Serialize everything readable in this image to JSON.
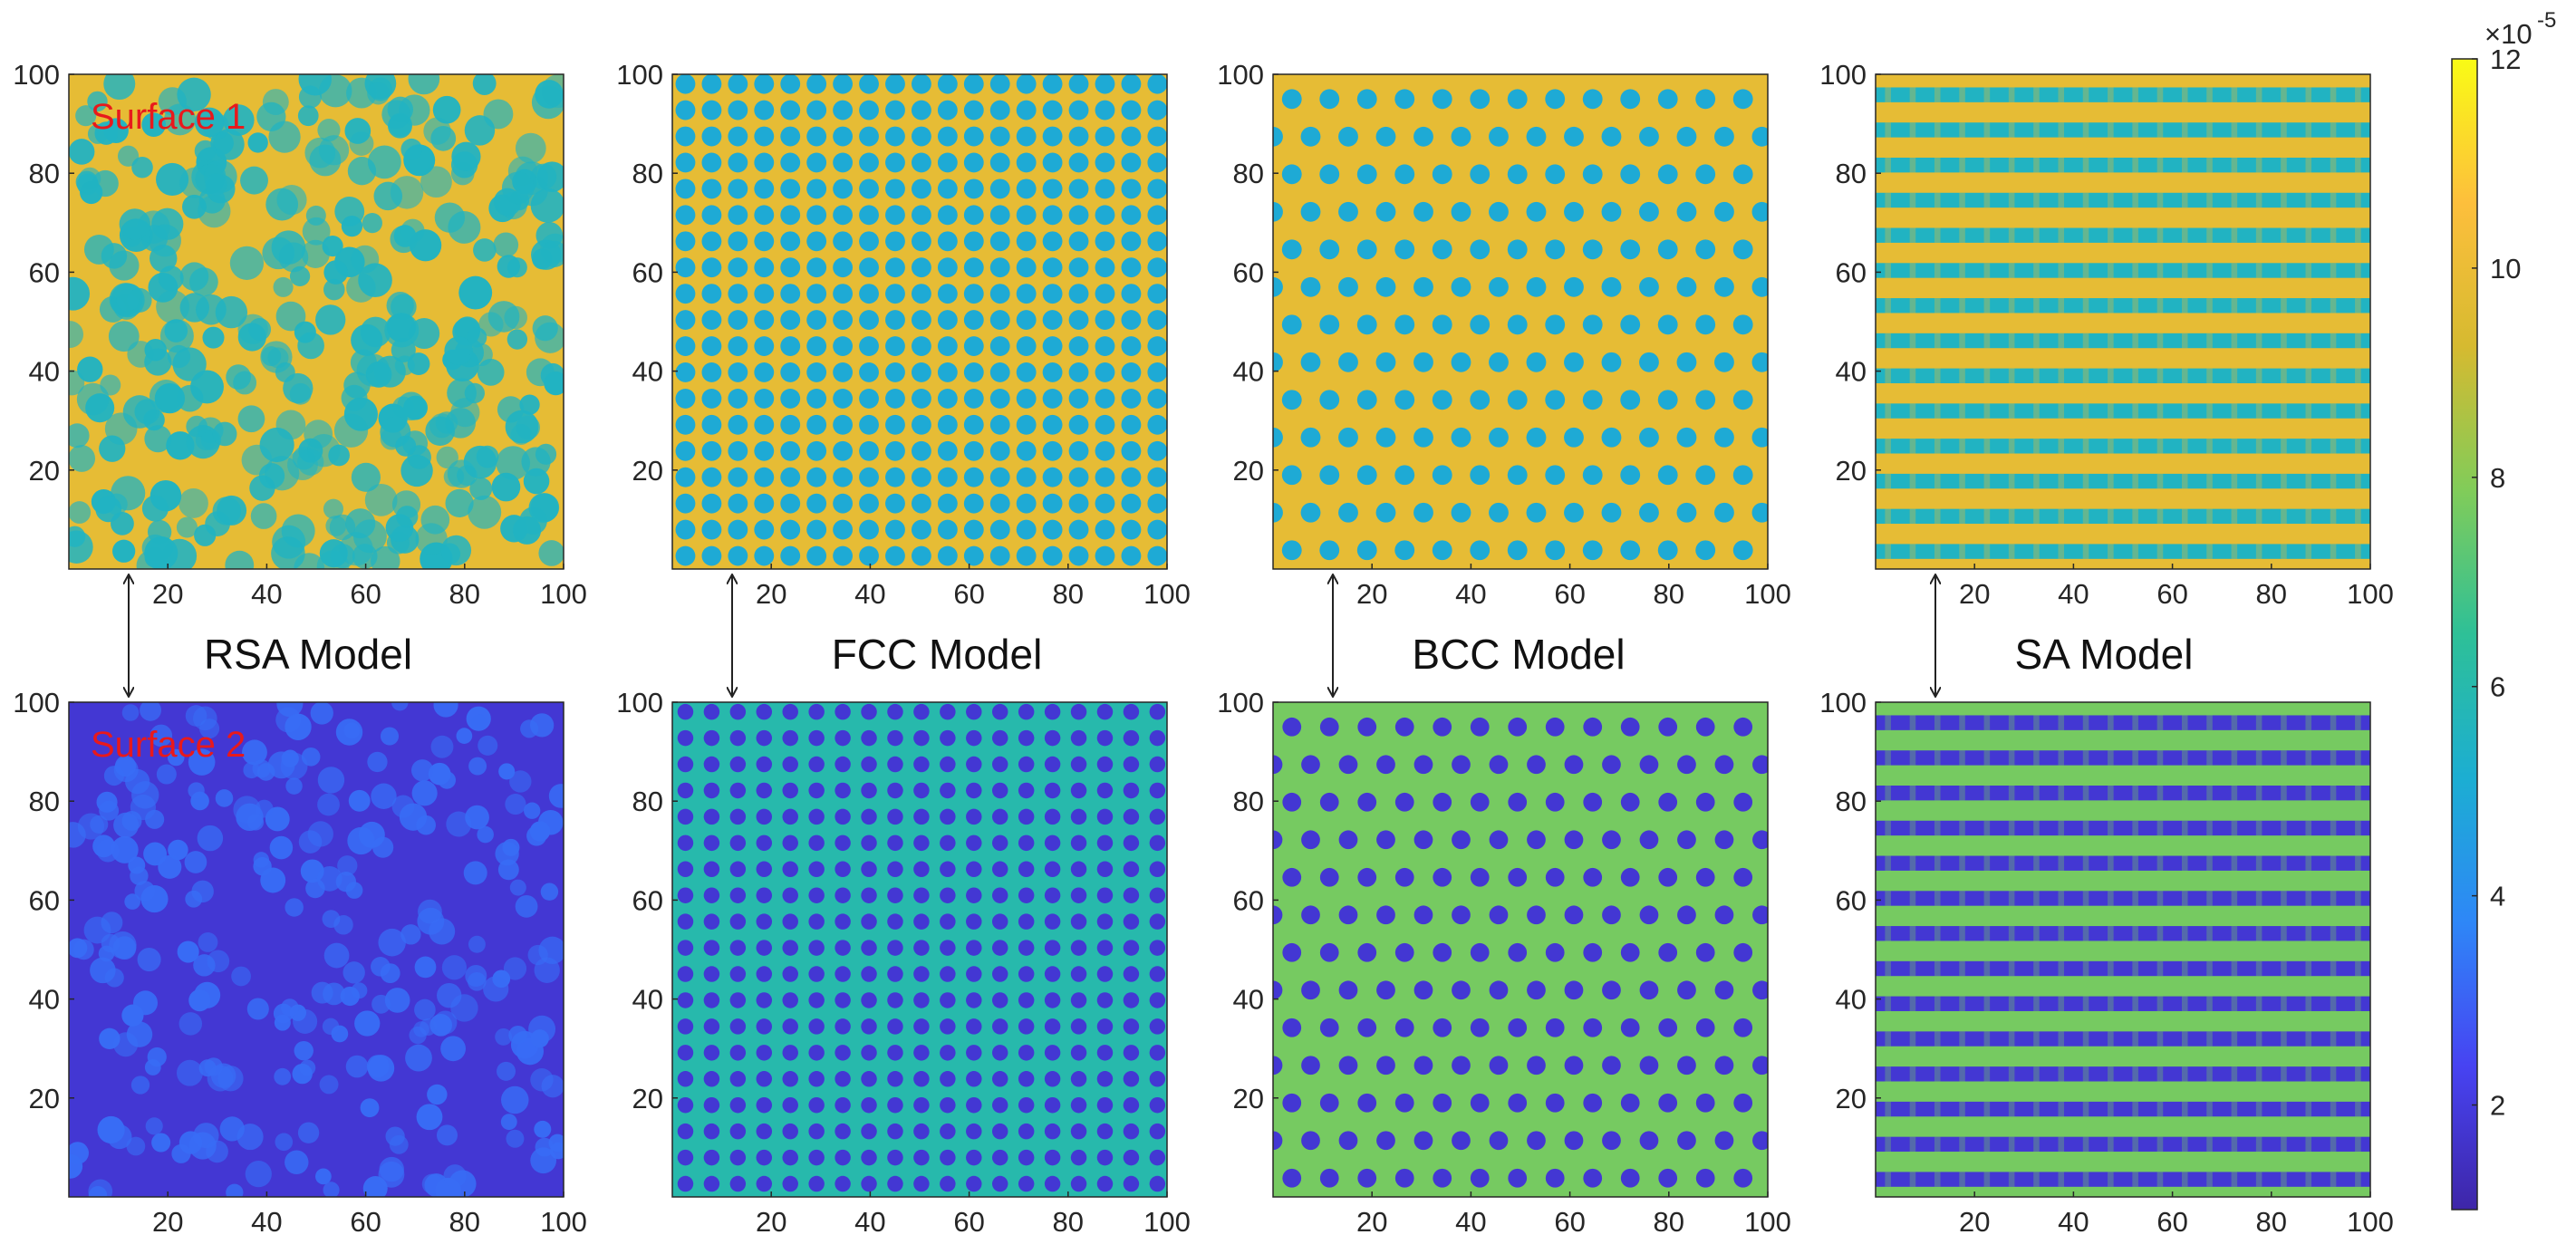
{
  "chart_data": [
    {
      "type": "heatmap",
      "model": "RSA",
      "row": "top",
      "label": "Surface 1",
      "pattern": "random",
      "xticks": [
        "20",
        "40",
        "60",
        "80",
        "100"
      ],
      "yticks": [
        "20",
        "40",
        "60",
        "80",
        "100"
      ],
      "xlim": [
        0,
        100
      ],
      "ylim": [
        0,
        100
      ],
      "background_level": 9.8,
      "spot_level": 5.5,
      "spot_count": 350,
      "spot_diameter": 5
    },
    {
      "type": "heatmap",
      "model": "FCC",
      "row": "top",
      "pattern": "square",
      "xticks": [
        "20",
        "40",
        "60",
        "80",
        "100"
      ],
      "yticks": [
        "20",
        "40",
        "60",
        "80",
        "100"
      ],
      "xlim": [
        0,
        100
      ],
      "ylim": [
        0,
        100
      ],
      "background_level": 9.8,
      "spot_level": 5.0,
      "grid_spacing": 5.3,
      "spot_diameter": 4
    },
    {
      "type": "heatmap",
      "model": "BCC",
      "row": "top",
      "pattern": "staggered",
      "xticks": [
        "20",
        "40",
        "60",
        "80",
        "100"
      ],
      "yticks": [
        "20",
        "40",
        "60",
        "80",
        "100"
      ],
      "xlim": [
        0,
        100
      ],
      "ylim": [
        0,
        100
      ],
      "background_level": 9.8,
      "spot_level": 5.0,
      "grid_spacing": 7.6,
      "spot_diameter": 4
    },
    {
      "type": "heatmap",
      "model": "SA",
      "row": "top",
      "pattern": "stripes",
      "xticks": [
        "20",
        "40",
        "60",
        "80",
        "100"
      ],
      "yticks": [
        "20",
        "40",
        "60",
        "80",
        "100"
      ],
      "xlim": [
        0,
        100
      ],
      "ylim": [
        0,
        100
      ],
      "background_level": 9.8,
      "stripe_level": 5.5,
      "stripe_spacing": 7.1,
      "stripe_width": 3
    },
    {
      "type": "heatmap",
      "model": "RSA",
      "row": "bottom",
      "label": "Surface 2",
      "pattern": "random",
      "xticks": [
        "20",
        "40",
        "60",
        "80",
        "100"
      ],
      "yticks": [
        "20",
        "40",
        "60",
        "80",
        "100"
      ],
      "xlim": [
        0,
        100
      ],
      "ylim": [
        0,
        100
      ],
      "background_level": 1.8,
      "spot_level": 3.2,
      "spot_count": 260,
      "spot_diameter": 4
    },
    {
      "type": "heatmap",
      "model": "FCC",
      "row": "bottom",
      "pattern": "square",
      "xticks": [
        "20",
        "40",
        "60",
        "80",
        "100"
      ],
      "yticks": [
        "20",
        "40",
        "60",
        "80",
        "100"
      ],
      "xlim": [
        0,
        100
      ],
      "ylim": [
        0,
        100
      ],
      "background_level": 6.0,
      "spot_level": 1.8,
      "grid_spacing": 5.3,
      "spot_diameter": 3.2
    },
    {
      "type": "heatmap",
      "model": "BCC",
      "row": "bottom",
      "pattern": "staggered",
      "xticks": [
        "20",
        "40",
        "60",
        "80",
        "100"
      ],
      "yticks": [
        "20",
        "40",
        "60",
        "80",
        "100"
      ],
      "xlim": [
        0,
        100
      ],
      "ylim": [
        0,
        100
      ],
      "background_level": 7.7,
      "spot_level": 1.8,
      "grid_spacing": 7.6,
      "spot_diameter": 3.8
    },
    {
      "type": "heatmap",
      "model": "SA",
      "row": "bottom",
      "pattern": "stripes",
      "xticks": [
        "20",
        "40",
        "60",
        "80",
        "100"
      ],
      "yticks": [
        "20",
        "40",
        "60",
        "80",
        "100"
      ],
      "xlim": [
        0,
        100
      ],
      "ylim": [
        0,
        100
      ],
      "background_level": 7.7,
      "stripe_level": 1.8,
      "stripe_spacing": 7.1,
      "stripe_width": 3
    }
  ],
  "titles": [
    "RSA Model",
    "FCC Model",
    "BCC Model",
    "SA Model"
  ],
  "colorbar": {
    "ticks": [
      "2",
      "4",
      "6",
      "8",
      "10",
      "12"
    ],
    "tick_values": [
      2,
      4,
      6,
      8,
      10,
      12
    ],
    "range": [
      1,
      12
    ],
    "exponent_base": "×10",
    "exponent": "-5",
    "colormap": [
      "#3e26a8",
      "#4743f2",
      "#2e87f7",
      "#1caed2",
      "#2ec097",
      "#81cc59",
      "#d6ba30",
      "#fdbf3c",
      "#f9fb15"
    ]
  },
  "colors": {
    "surface_label": "#e8191c",
    "axis": "#262626"
  }
}
